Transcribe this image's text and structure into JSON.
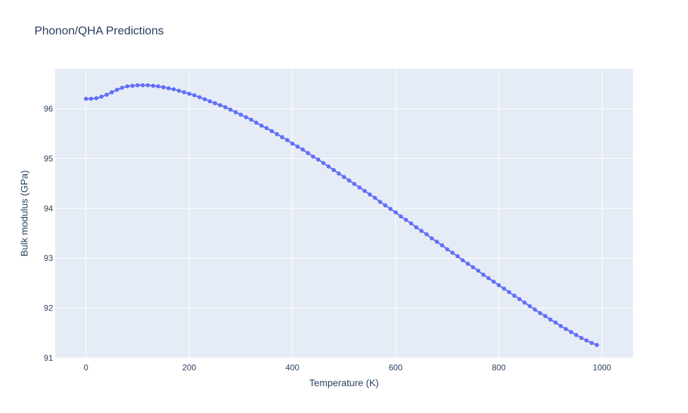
{
  "chart_data": {
    "type": "line",
    "title": "Phonon/QHA Predictions",
    "xlabel": "Temperature (K)",
    "ylabel": "Bulk modulus (GPa)",
    "xlim": [
      -60,
      1060
    ],
    "ylim": [
      91.0,
      96.8
    ],
    "xticks": [
      0,
      200,
      400,
      600,
      800,
      1000
    ],
    "xtick_labels": [
      "0",
      "200",
      "400",
      "600",
      "800",
      "1000"
    ],
    "yticks": [
      91,
      92,
      93,
      94,
      95,
      96
    ],
    "ytick_labels": [
      "91",
      "92",
      "93",
      "94",
      "95",
      "96"
    ],
    "grid": true,
    "legend": "none",
    "colors": {
      "series": "#636efa",
      "plot_bg": "#e5ecf6",
      "grid": "#ffffff",
      "text": "#2a3f5f"
    },
    "series": [
      {
        "mode": "lines+markers",
        "x": [
          0,
          10,
          20,
          30,
          40,
          50,
          60,
          70,
          80,
          90,
          100,
          110,
          120,
          130,
          140,
          150,
          160,
          170,
          180,
          190,
          200,
          210,
          220,
          230,
          240,
          250,
          260,
          270,
          280,
          290,
          300,
          310,
          320,
          330,
          340,
          350,
          360,
          370,
          380,
          390,
          400,
          410,
          420,
          430,
          440,
          450,
          460,
          470,
          480,
          490,
          500,
          510,
          520,
          530,
          540,
          550,
          560,
          570,
          580,
          590,
          600,
          610,
          620,
          630,
          640,
          650,
          660,
          670,
          680,
          690,
          700,
          710,
          720,
          730,
          740,
          750,
          760,
          770,
          780,
          790,
          800,
          810,
          820,
          830,
          840,
          850,
          860,
          870,
          880,
          890,
          900,
          910,
          920,
          930,
          940,
          950,
          960,
          970,
          980,
          990
        ],
        "y": [
          96.2,
          96.2,
          96.21,
          96.24,
          96.28,
          96.33,
          96.38,
          96.42,
          96.45,
          96.46,
          96.47,
          96.47,
          96.47,
          96.46,
          96.45,
          96.43,
          96.41,
          96.39,
          96.36,
          96.33,
          96.3,
          96.27,
          96.23,
          96.19,
          96.15,
          96.11,
          96.07,
          96.03,
          95.98,
          95.93,
          95.88,
          95.83,
          95.78,
          95.72,
          95.66,
          95.61,
          95.55,
          95.49,
          95.43,
          95.37,
          95.3,
          95.24,
          95.18,
          95.11,
          95.04,
          94.98,
          94.91,
          94.84,
          94.77,
          94.7,
          94.63,
          94.56,
          94.49,
          94.42,
          94.35,
          94.28,
          94.21,
          94.13,
          94.06,
          93.99,
          93.92,
          93.84,
          93.77,
          93.7,
          93.62,
          93.55,
          93.48,
          93.4,
          93.33,
          93.26,
          93.18,
          93.11,
          93.04,
          92.96,
          92.89,
          92.82,
          92.75,
          92.67,
          92.6,
          92.53,
          92.46,
          92.39,
          92.32,
          92.25,
          92.18,
          92.11,
          92.04,
          91.97,
          91.9,
          91.84,
          91.77,
          91.71,
          91.64,
          91.58,
          91.52,
          91.46,
          91.4,
          91.35,
          91.3,
          91.26
        ]
      }
    ]
  }
}
